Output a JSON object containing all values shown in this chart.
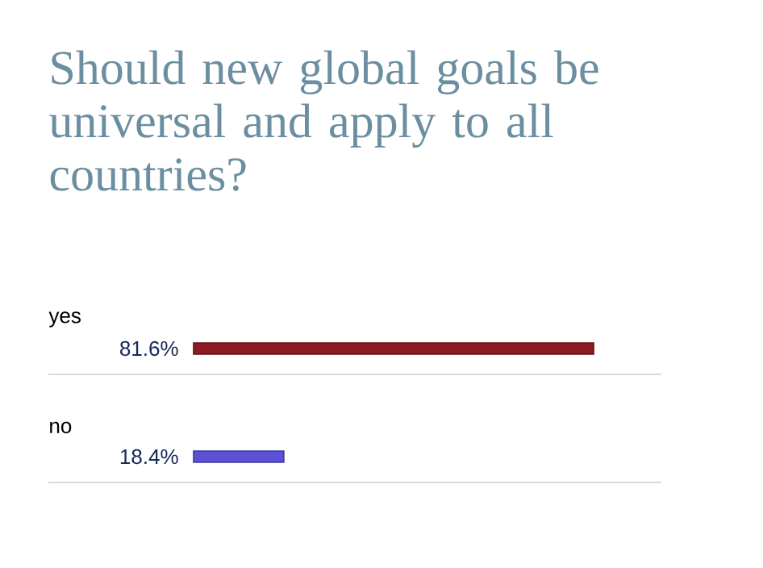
{
  "chart_data": {
    "type": "bar",
    "orientation": "horizontal",
    "title": "Should new global goals be universal and apply to all countries?",
    "categories": [
      "yes",
      "no"
    ],
    "values": [
      81.6,
      18.4
    ],
    "colors": [
      "#8b1a22",
      "#5b50d6"
    ],
    "value_labels": [
      "81.6%",
      "18.4%"
    ],
    "tick_labels": false
  }
}
